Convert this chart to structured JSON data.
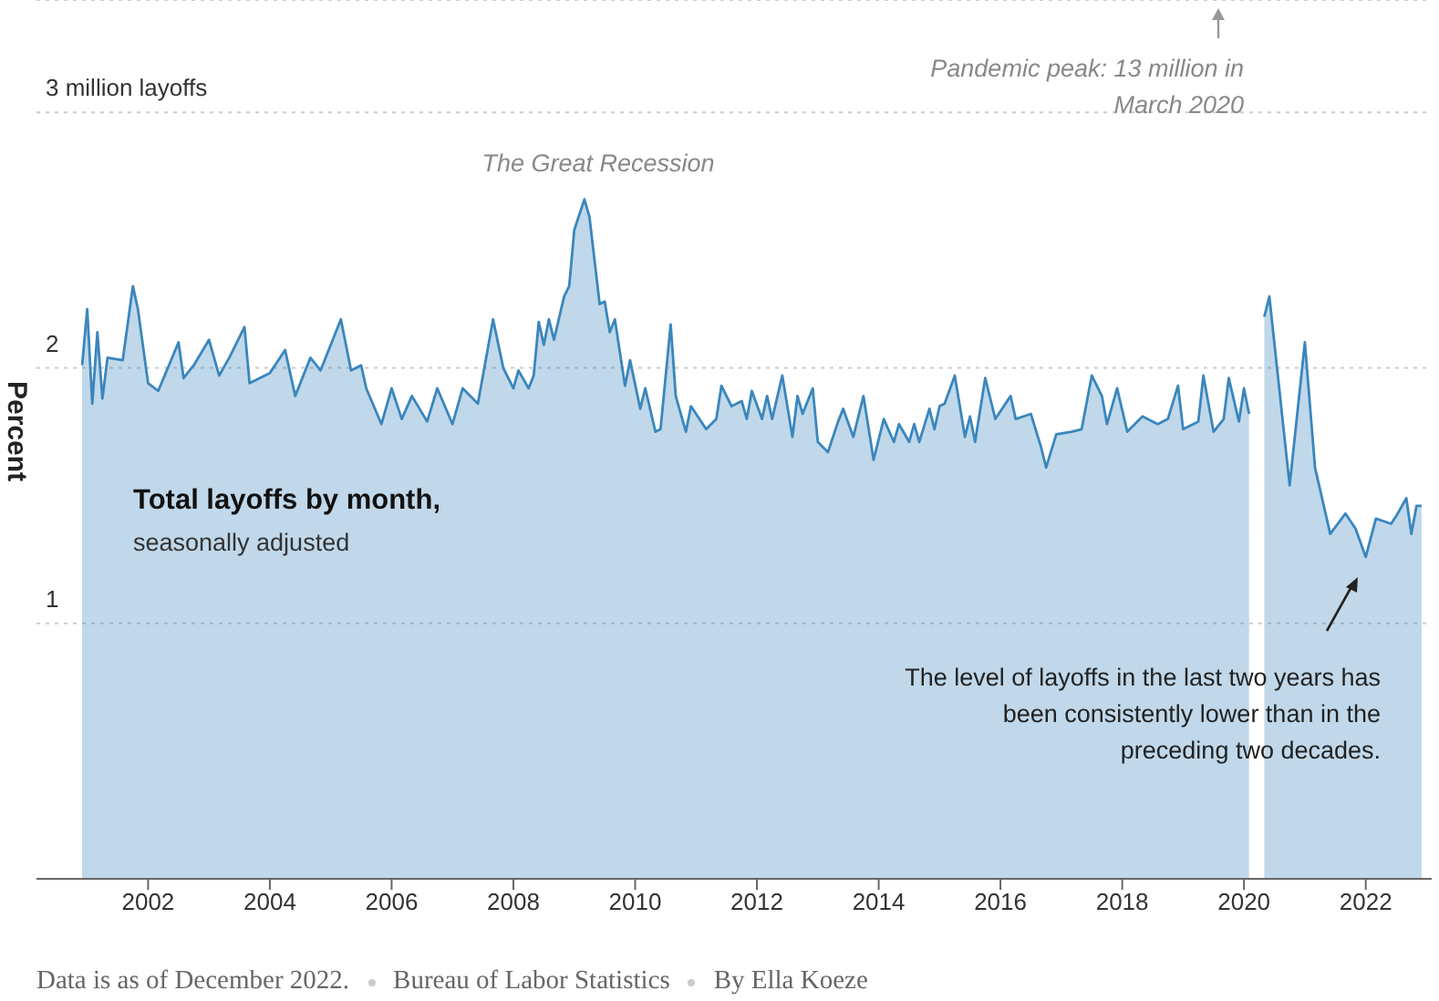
{
  "chart_data": {
    "type": "area",
    "title": "Total layoffs by month,",
    "subtitle": "seasonally adjusted",
    "ylabel": "Percent",
    "x": [
      "2000-12",
      "2001-01",
      "2001-02",
      "2001-03",
      "2001-04",
      "2001-05",
      "2001-08",
      "2001-10",
      "2001-11",
      "2002-01",
      "2002-03",
      "2002-07",
      "2002-08",
      "2002-10",
      "2003-01",
      "2003-03",
      "2003-05",
      "2003-08",
      "2003-09",
      "2004-01",
      "2004-04",
      "2004-06",
      "2004-09",
      "2004-11",
      "2005-03",
      "2005-05",
      "2005-07",
      "2005-08",
      "2005-11",
      "2006-01",
      "2006-03",
      "2006-05",
      "2006-08",
      "2006-10",
      "2007-01",
      "2007-03",
      "2007-06",
      "2007-09",
      "2007-11",
      "2008-01",
      "2008-02",
      "2008-04",
      "2008-05",
      "2008-06",
      "2008-07",
      "2008-08",
      "2008-09",
      "2008-11",
      "2008-12",
      "2009-01",
      "2009-02",
      "2009-03",
      "2009-04",
      "2009-06",
      "2009-07",
      "2009-08",
      "2009-09",
      "2009-11",
      "2009-12",
      "2010-02",
      "2010-03",
      "2010-05",
      "2010-06",
      "2010-08",
      "2010-09",
      "2010-11",
      "2010-12",
      "2011-03",
      "2011-05",
      "2011-06",
      "2011-08",
      "2011-10",
      "2011-11",
      "2011-12",
      "2012-02",
      "2012-03",
      "2012-04",
      "2012-06",
      "2012-08",
      "2012-09",
      "2012-10",
      "2012-12",
      "2013-01",
      "2013-03",
      "2013-05",
      "2013-06",
      "2013-08",
      "2013-10",
      "2013-12",
      "2014-02",
      "2014-04",
      "2014-05",
      "2014-07",
      "2014-08",
      "2014-09",
      "2014-11",
      "2014-12",
      "2015-01",
      "2015-02",
      "2015-04",
      "2015-06",
      "2015-07",
      "2015-08",
      "2015-10",
      "2015-12",
      "2016-03",
      "2016-04",
      "2016-07",
      "2016-09",
      "2016-10",
      "2016-12",
      "2017-03",
      "2017-05",
      "2017-07",
      "2017-09",
      "2017-10",
      "2017-12",
      "2018-02",
      "2018-05",
      "2018-08",
      "2018-10",
      "2018-12",
      "2019-01",
      "2019-04",
      "2019-05",
      "2019-07",
      "2019-09",
      "2019-10",
      "2019-12",
      "2020-01",
      "2020-02",
      "2020-03",
      "2020-05",
      "2020-06",
      "2020-10",
      "2021-01",
      "2021-03",
      "2021-06",
      "2021-09",
      "2021-11",
      "2022-01",
      "2022-03",
      "2022-06",
      "2022-07",
      "2022-09",
      "2022-10",
      "2022-11",
      "2022-12"
    ],
    "values": [
      2.01,
      2.23,
      1.86,
      2.14,
      1.88,
      2.04,
      2.03,
      2.32,
      2.23,
      1.94,
      1.91,
      2.1,
      1.96,
      2.01,
      2.11,
      1.97,
      2.04,
      2.16,
      1.94,
      1.98,
      2.07,
      1.89,
      2.04,
      1.99,
      2.19,
      1.99,
      2.01,
      1.92,
      1.78,
      1.92,
      1.8,
      1.89,
      1.79,
      1.92,
      1.78,
      1.92,
      1.86,
      2.19,
      2.0,
      1.92,
      1.99,
      1.92,
      1.97,
      2.18,
      2.09,
      2.19,
      2.11,
      2.28,
      2.32,
      2.54,
      2.6,
      2.66,
      2.59,
      2.25,
      2.26,
      2.14,
      2.19,
      1.93,
      2.03,
      1.84,
      1.92,
      1.75,
      1.76,
      2.17,
      1.89,
      1.75,
      1.85,
      1.76,
      1.8,
      1.93,
      1.85,
      1.87,
      1.8,
      1.91,
      1.8,
      1.89,
      1.8,
      1.97,
      1.73,
      1.89,
      1.82,
      1.92,
      1.71,
      1.67,
      1.79,
      1.84,
      1.73,
      1.89,
      1.64,
      1.8,
      1.71,
      1.78,
      1.71,
      1.78,
      1.71,
      1.84,
      1.76,
      1.85,
      1.86,
      1.97,
      1.73,
      1.81,
      1.71,
      1.96,
      1.8,
      1.89,
      1.8,
      1.82,
      1.69,
      1.61,
      1.74,
      1.75,
      1.76,
      1.97,
      1.89,
      1.78,
      1.92,
      1.75,
      1.81,
      1.78,
      1.8,
      1.93,
      1.76,
      1.79,
      1.97,
      1.75,
      1.8,
      1.96,
      1.79,
      1.92,
      1.82,
      null,
      2.2,
      2.28,
      1.54,
      2.1,
      1.61,
      1.35,
      1.43,
      1.37,
      1.26,
      1.41,
      1.39,
      1.42,
      1.49,
      1.35,
      1.46,
      1.46
    ],
    "color": "#3a86bd",
    "xlim": [
      "2000-03",
      "2023-02"
    ],
    "xticks": [
      "2002",
      "2004",
      "2006",
      "2008",
      "2010",
      "2012",
      "2014",
      "2016",
      "2018",
      "2020",
      "2022"
    ],
    "ylim": [
      0,
      3.44
    ],
    "yticks": [
      1,
      2,
      {
        "value": 3,
        "label": "3 million layoffs"
      }
    ],
    "grid": "y",
    "annotations": [
      "The Great Recession",
      "Pandemic peak: 13 million in March 2020",
      "The level of layoffs in the last two years has been consistently lower than in the preceding two decades.",
      "Data is as of December 2022.",
      "Bureau of Labor Statistics",
      "By Ella Koeze"
    ]
  }
}
